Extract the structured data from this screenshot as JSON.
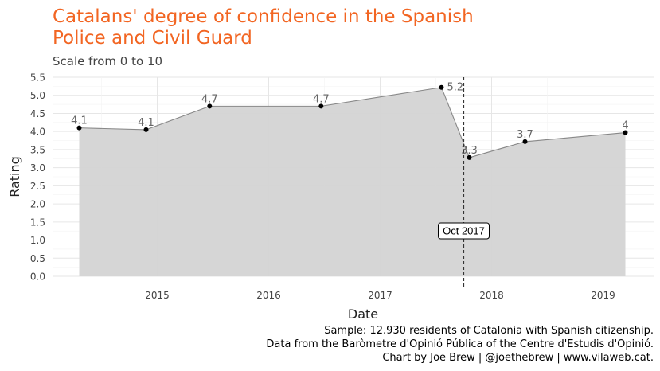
{
  "chart_data": {
    "type": "area",
    "title_line1": "Catalans' degree of confidence in the Spanish",
    "title_line2": "Police and Civil Guard",
    "subtitle": "Scale from 0 to 10",
    "xlabel": "Date",
    "ylabel": "Rating",
    "x_ticks": [
      "2015",
      "2016",
      "2017",
      "2018",
      "2019"
    ],
    "y_ticks": [
      "0.0",
      "0.5",
      "1.0",
      "1.5",
      "2.0",
      "2.5",
      "3.0",
      "3.5",
      "4.0",
      "4.5",
      "5.0",
      "5.5"
    ],
    "xlim": [
      2013.75,
      2019.5
    ],
    "ylim": [
      0,
      5.5
    ],
    "grid": true,
    "points": [
      {
        "x": 2014.3,
        "y": 4.1,
        "label": "4.1"
      },
      {
        "x": 2014.9,
        "y": 4.05,
        "label": "4.1"
      },
      {
        "x": 2015.47,
        "y": 4.7,
        "label": "4.7"
      },
      {
        "x": 2016.47,
        "y": 4.7,
        "label": "4.7"
      },
      {
        "x": 2017.55,
        "y": 5.22,
        "label": "5.2"
      },
      {
        "x": 2017.8,
        "y": 3.28,
        "label": "3.3"
      },
      {
        "x": 2018.3,
        "y": 3.72,
        "label": "3.7"
      },
      {
        "x": 2019.2,
        "y": 3.97,
        "label": "4"
      }
    ],
    "annotation": {
      "x": 2017.75,
      "label": "Oct 2017"
    },
    "colors": {
      "title": "#f26522",
      "area": "#d4d4d4",
      "line": "#888888",
      "point": "#000000"
    }
  },
  "caption": {
    "line1": "Sample: 12.930 residents of Catalonia with Spanish citizenship.",
    "line2": "Data from the Baròmetre d'Opinió Pública of the Centre d'Estudis d'Opinió.",
    "line3": "Chart by Joe Brew | @joethebrew | www.vilaweb.cat."
  }
}
